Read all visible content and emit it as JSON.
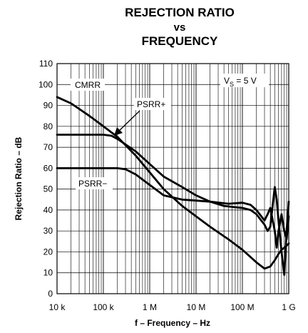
{
  "chart_data": {
    "type": "line",
    "title_lines": [
      "REJECTION RATIO",
      "vs",
      "FREQUENCY"
    ],
    "xlabel": "f – Frequency – Hz",
    "ylabel": "Rejection Ratio – dB",
    "x_scale": "log",
    "xlim": [
      10000,
      1000000000
    ],
    "ylim": [
      0,
      110
    ],
    "grid": true,
    "x_tick_values": [
      10000,
      100000,
      1000000,
      10000000,
      100000000,
      1000000000
    ],
    "x_tick_labels": [
      "10 k",
      "100 k",
      "1 M",
      "10 M",
      "100 M",
      "1 G"
    ],
    "y_tick_values": [
      0,
      10,
      20,
      30,
      40,
      50,
      60,
      70,
      80,
      90,
      100,
      110
    ],
    "y_tick_labels": [
      "0",
      "10",
      "20",
      "30",
      "40",
      "50",
      "60",
      "70",
      "80",
      "90",
      "100",
      "110"
    ],
    "condition_label": {
      "prefix": "V",
      "sub": "S",
      "suffix": " = 5 V"
    },
    "series": [
      {
        "name": "CMRR",
        "x": [
          10000,
          20000,
          50000,
          100000,
          200000,
          500000,
          1000000,
          2000000,
          5000000,
          10000000,
          20000000,
          50000000,
          100000000,
          200000000,
          300000000,
          400000000,
          500000000,
          600000000,
          700000000,
          800000000,
          900000000,
          1000000000
        ],
        "y": [
          94,
          91,
          85,
          80,
          75,
          66,
          58,
          50,
          42,
          37,
          32,
          26,
          21,
          15,
          12,
          13,
          16,
          19,
          21,
          22,
          23,
          24
        ]
      },
      {
        "name": "PSRR+",
        "x": [
          10000,
          50000,
          100000,
          150000,
          200000,
          500000,
          1000000,
          2000000,
          5000000,
          10000000,
          20000000,
          40000000,
          60000000,
          100000000,
          150000000,
          200000000,
          300000000,
          350000000,
          400000000,
          500000000,
          550000000,
          600000000,
          700000000,
          800000000,
          900000000,
          1000000000
        ],
        "y": [
          76,
          76,
          76,
          75.5,
          74,
          68,
          62,
          56,
          51,
          47,
          44,
          42,
          41.5,
          41,
          40,
          38,
          33,
          30,
          32,
          51,
          45,
          35,
          20,
          9,
          30,
          44
        ]
      },
      {
        "name": "PSRR−",
        "x": [
          10000,
          100000,
          200000,
          300000,
          500000,
          1000000,
          2000000,
          5000000,
          10000000,
          20000000,
          50000000,
          100000000,
          150000000,
          200000000,
          300000000,
          350000000,
          400000000,
          500000000,
          550000000,
          600000000,
          700000000,
          800000000,
          900000000,
          1000000000
        ],
        "y": [
          60,
          60,
          60,
          59.5,
          57,
          52,
          47,
          45,
          44.5,
          44,
          43,
          43.5,
          42.5,
          40,
          35,
          38,
          41,
          30,
          22,
          30,
          38,
          30,
          26,
          37
        ]
      }
    ],
    "annotations": [
      {
        "text": "CMRR",
        "series": 0
      },
      {
        "text": "PSRR+",
        "series": 1
      },
      {
        "text": "PSRR−",
        "series": 2
      }
    ]
  }
}
